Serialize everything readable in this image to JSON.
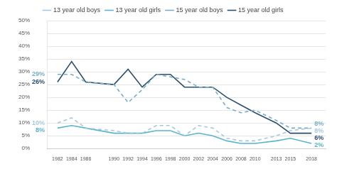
{
  "chart_data": {
    "type": "line",
    "x": [
      1982,
      1984,
      1986,
      1990,
      1992,
      1994,
      1996,
      1998,
      2000,
      2002,
      2004,
      2006,
      2008,
      2010,
      2013,
      2015,
      2018
    ],
    "series": [
      {
        "name": "13 year old boys",
        "color": "#a8c8dc",
        "line_style": "dashed",
        "values": [
          10,
          12,
          8,
          7,
          6,
          6,
          9,
          9,
          5,
          9,
          8,
          4,
          3,
          3,
          5,
          7,
          8
        ]
      },
      {
        "name": "13 year old girls",
        "color": "#5ab4cc",
        "line_style": "solid",
        "values": [
          8,
          9,
          8,
          6,
          6,
          6,
          7,
          7,
          5,
          6,
          5,
          3,
          2,
          2,
          3,
          4,
          2
        ]
      },
      {
        "name": "15 year old boys",
        "color": "#7aaec4",
        "line_style": "dashed",
        "values": [
          29,
          29,
          26,
          25,
          18,
          23,
          29,
          28,
          27,
          24,
          24,
          16,
          14,
          15,
          11,
          8,
          8
        ]
      },
      {
        "name": "15 year old girls",
        "color": "#2a4e6c",
        "line_style": "solid",
        "values": [
          26,
          34,
          26,
          25,
          31,
          24,
          29,
          29,
          24,
          24,
          24,
          20,
          17,
          14,
          10,
          6,
          6
        ]
      }
    ],
    "xlim": [
      1980.5,
      2020
    ],
    "xticks": [
      1982,
      1984,
      1986,
      1990,
      1992,
      1994,
      1996,
      1998,
      2000,
      2002,
      2004,
      2006,
      2008,
      2010,
      2013,
      2015,
      2018
    ],
    "ylim": [
      0,
      50
    ],
    "yticks": [
      {
        "value": 0,
        "label": "0%"
      },
      {
        "value": 5,
        "label": "5%"
      },
      {
        "value": 10,
        "label": "10%"
      },
      {
        "value": 15,
        "label": "15%"
      },
      {
        "value": 20,
        "label": "20%"
      },
      {
        "value": 25,
        "label": "25%"
      },
      {
        "value": 30,
        "label": "30%"
      },
      {
        "value": 35,
        "label": "35%"
      },
      {
        "value": 40,
        "label": "40%"
      },
      {
        "value": 45,
        "label": "45%"
      },
      {
        "value": 50,
        "label": "50%"
      }
    ],
    "grid": true,
    "legend": "top",
    "annotations": [
      {
        "text": "29%",
        "series": "15 year old boys",
        "position": "start"
      },
      {
        "text": "26%",
        "series": "15 year old girls",
        "position": "start"
      },
      {
        "text": "10%",
        "series": "13 year old boys",
        "position": "start"
      },
      {
        "text": "8%",
        "series": "13 year old girls",
        "position": "start"
      },
      {
        "text": "8%",
        "series": "15 year old boys",
        "position": "end"
      },
      {
        "text": "6%",
        "series": "15 year old girls",
        "position": "end"
      },
      {
        "text": "8%",
        "series": "13 year old boys",
        "position": "end"
      },
      {
        "text": "2%",
        "series": "13 year old girls",
        "position": "end"
      }
    ]
  }
}
